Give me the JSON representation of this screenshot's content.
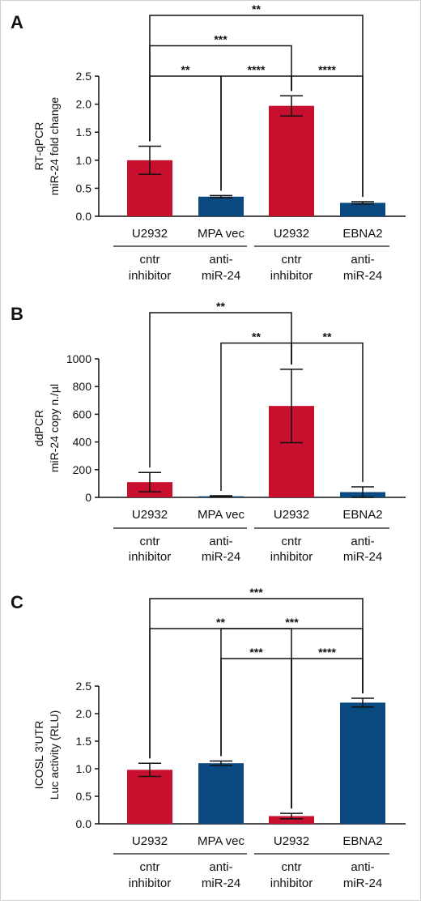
{
  "colors": {
    "red": "#C8102E",
    "blue": "#0B4A80",
    "axis": "#111111"
  },
  "chart_data": [
    {
      "panel": "A",
      "type": "bar",
      "ylabel": [
        "RT-qPCR",
        "miR-24 fold change"
      ],
      "ylim": [
        0,
        2.5
      ],
      "yticks": [
        "0.0",
        "0.5",
        "1.0",
        "1.5",
        "2.0",
        "2.5"
      ],
      "categories": [
        "U2932",
        "MPA vec",
        "U2932",
        "EBNA2"
      ],
      "groups": [
        [
          "cntr",
          "inhibitor"
        ],
        [
          "anti-",
          "miR-24"
        ],
        [
          "cntr",
          "inhibitor"
        ],
        [
          "anti-",
          "miR-24"
        ]
      ],
      "bar_colors": [
        "red",
        "blue",
        "red",
        "blue"
      ],
      "values": [
        1.0,
        0.35,
        1.97,
        0.24
      ],
      "errors": [
        0.25,
        0.02,
        0.18,
        0.02
      ],
      "significance": [
        {
          "from": 0,
          "to": 1,
          "label": "**"
        },
        {
          "from": 1,
          "to": 2,
          "label": "****"
        },
        {
          "from": 2,
          "to": 3,
          "label": "****"
        },
        {
          "from": 0,
          "to": 2,
          "label": "***"
        },
        {
          "from": 0,
          "to": 3,
          "label": "**"
        }
      ]
    },
    {
      "panel": "B",
      "type": "bar",
      "ylabel": [
        "ddPCR",
        "miR-24 copy n./µl"
      ],
      "ylim": [
        0,
        1000
      ],
      "yticks": [
        "0",
        "200",
        "400",
        "600",
        "800",
        "1000"
      ],
      "categories": [
        "U2932",
        "MPA vec",
        "U2932",
        "EBNA2"
      ],
      "groups": [
        [
          "cntr",
          "inhibitor"
        ],
        [
          "anti-",
          "miR-24"
        ],
        [
          "cntr",
          "inhibitor"
        ],
        [
          "anti-",
          "miR-24"
        ]
      ],
      "bar_colors": [
        "red",
        "blue",
        "red",
        "blue"
      ],
      "values": [
        110,
        8,
        660,
        38
      ],
      "errors": [
        70,
        4,
        265,
        38
      ],
      "significance": [
        {
          "from": 1,
          "to": 2,
          "label": "**"
        },
        {
          "from": 2,
          "to": 3,
          "label": "**"
        },
        {
          "from": 0,
          "to": 2,
          "label": "**"
        }
      ]
    },
    {
      "panel": "C",
      "type": "bar",
      "ylabel": [
        "ICOSL 3'UTR",
        "Luc activity (RLU)"
      ],
      "ylim": [
        0,
        2.5
      ],
      "yticks": [
        "0.0",
        "0.5",
        "1.0",
        "1.5",
        "2.0",
        "2.5"
      ],
      "categories": [
        "U2932",
        "MPA vec",
        "U2932",
        "EBNA2"
      ],
      "groups": [
        [
          "cntr",
          "inhibitor"
        ],
        [
          "anti-",
          "miR-24"
        ],
        [
          "cntr",
          "inhibitor"
        ],
        [
          "anti-",
          "miR-24"
        ]
      ],
      "bar_colors": [
        "red",
        "blue",
        "red",
        "blue"
      ],
      "values": [
        0.98,
        1.1,
        0.14,
        2.2
      ],
      "errors": [
        0.12,
        0.04,
        0.05,
        0.08
      ],
      "significance": [
        {
          "from": 1,
          "to": 2,
          "label": "***"
        },
        {
          "from": 2,
          "to": 3,
          "label": "****"
        },
        {
          "from": 1,
          "to": 3,
          "label": "***"
        },
        {
          "from": 0,
          "to": 2,
          "label": "**"
        },
        {
          "from": 0,
          "to": 3,
          "label": "***"
        }
      ]
    }
  ]
}
